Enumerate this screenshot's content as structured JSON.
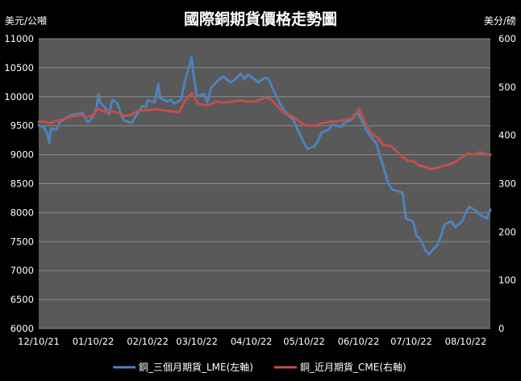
{
  "chart_data": {
    "type": "line",
    "title": "國際銅期貨價格走勢圖",
    "left_axis_label": "美元/公噸",
    "right_axis_label": "美分/磅",
    "y_left": {
      "min": 6000,
      "max": 11000,
      "ticks": [
        6000,
        6500,
        7000,
        7500,
        8000,
        8500,
        9000,
        9500,
        10000,
        10500,
        11000
      ]
    },
    "y_right": {
      "min": 0,
      "max": 600,
      "ticks": [
        0,
        100,
        200,
        300,
        400,
        500,
        600
      ]
    },
    "x_ticks": [
      "12/10/21",
      "01/10/22",
      "02/10/22",
      "03/10/22",
      "04/10/22",
      "05/10/22",
      "06/10/22",
      "07/10/22",
      "08/10/22"
    ],
    "x_range": [
      "2021-12-10",
      "2022-08-24"
    ],
    "grid": true,
    "legend_position": "bottom",
    "colors": {
      "lme": "#4f81bd",
      "cme": "#c0504d",
      "plot_bg": "#595959",
      "grid": "#8c8c8c"
    },
    "series": [
      {
        "name": "銅_三個月期貨_LME(左軸)",
        "axis": "left",
        "points": [
          [
            "2021-12-10",
            9510
          ],
          [
            "2021-12-13",
            9470
          ],
          [
            "2021-12-15",
            9360
          ],
          [
            "2021-12-16",
            9200
          ],
          [
            "2021-12-17",
            9450
          ],
          [
            "2021-12-20",
            9430
          ],
          [
            "2021-12-22",
            9560
          ],
          [
            "2021-12-24",
            9600
          ],
          [
            "2021-12-28",
            9680
          ],
          [
            "2021-12-31",
            9700
          ],
          [
            "2022-01-04",
            9720
          ],
          [
            "2022-01-06",
            9600
          ],
          [
            "2022-01-07",
            9560
          ],
          [
            "2022-01-10",
            9650
          ],
          [
            "2022-01-12",
            9820
          ],
          [
            "2022-01-13",
            10050
          ],
          [
            "2022-01-14",
            9900
          ],
          [
            "2022-01-17",
            9800
          ],
          [
            "2022-01-19",
            9700
          ],
          [
            "2022-01-21",
            9950
          ],
          [
            "2022-01-24",
            9870
          ],
          [
            "2022-01-26",
            9680
          ],
          [
            "2022-01-28",
            9580
          ],
          [
            "2022-02-01",
            9550
          ],
          [
            "2022-02-03",
            9650
          ],
          [
            "2022-02-07",
            9840
          ],
          [
            "2022-02-09",
            9820
          ],
          [
            "2022-02-10",
            9940
          ],
          [
            "2022-02-14",
            9900
          ],
          [
            "2022-02-16",
            10220
          ],
          [
            "2022-02-17",
            9980
          ],
          [
            "2022-02-21",
            9920
          ],
          [
            "2022-02-23",
            9950
          ],
          [
            "2022-02-25",
            9880
          ],
          [
            "2022-03-01",
            9950
          ],
          [
            "2022-03-03",
            10250
          ],
          [
            "2022-03-07",
            10680
          ],
          [
            "2022-03-08",
            10400
          ],
          [
            "2022-03-10",
            10000
          ],
          [
            "2022-03-14",
            10050
          ],
          [
            "2022-03-16",
            9900
          ],
          [
            "2022-03-18",
            10150
          ],
          [
            "2022-03-22",
            10280
          ],
          [
            "2022-03-25",
            10350
          ],
          [
            "2022-03-29",
            10250
          ],
          [
            "2022-04-01",
            10300
          ],
          [
            "2022-04-04",
            10400
          ],
          [
            "2022-04-06",
            10300
          ],
          [
            "2022-04-08",
            10380
          ],
          [
            "2022-04-12",
            10300
          ],
          [
            "2022-04-14",
            10250
          ],
          [
            "2022-04-18",
            10330
          ],
          [
            "2022-04-20",
            10300
          ],
          [
            "2022-04-22",
            10150
          ],
          [
            "2022-04-26",
            9900
          ],
          [
            "2022-04-28",
            9800
          ],
          [
            "2022-05-02",
            9650
          ],
          [
            "2022-05-04",
            9600
          ],
          [
            "2022-05-06",
            9450
          ],
          [
            "2022-05-10",
            9200
          ],
          [
            "2022-05-12",
            9100
          ],
          [
            "2022-05-16",
            9150
          ],
          [
            "2022-05-18",
            9250
          ],
          [
            "2022-05-20",
            9380
          ],
          [
            "2022-05-24",
            9430
          ],
          [
            "2022-05-26",
            9520
          ],
          [
            "2022-05-31",
            9480
          ],
          [
            "2022-06-02",
            9550
          ],
          [
            "2022-06-06",
            9600
          ],
          [
            "2022-06-08",
            9700
          ],
          [
            "2022-06-10",
            9700
          ],
          [
            "2022-06-14",
            9450
          ],
          [
            "2022-06-16",
            9350
          ],
          [
            "2022-06-20",
            9200
          ],
          [
            "2022-06-22",
            9000
          ],
          [
            "2022-06-24",
            8800
          ],
          [
            "2022-06-27",
            8500
          ],
          [
            "2022-06-29",
            8400
          ],
          [
            "2022-07-01",
            8380
          ],
          [
            "2022-07-05",
            8350
          ],
          [
            "2022-07-07",
            7900
          ],
          [
            "2022-07-11",
            7850
          ],
          [
            "2022-07-13",
            7600
          ],
          [
            "2022-07-15",
            7550
          ],
          [
            "2022-07-18",
            7350
          ],
          [
            "2022-07-20",
            7280
          ],
          [
            "2022-07-22",
            7350
          ],
          [
            "2022-07-25",
            7450
          ],
          [
            "2022-07-27",
            7600
          ],
          [
            "2022-07-29",
            7800
          ],
          [
            "2022-08-02",
            7850
          ],
          [
            "2022-08-04",
            7750
          ],
          [
            "2022-08-08",
            7850
          ],
          [
            "2022-08-10",
            8000
          ],
          [
            "2022-08-12",
            8100
          ],
          [
            "2022-08-15",
            8050
          ],
          [
            "2022-08-17",
            8000
          ],
          [
            "2022-08-19",
            7950
          ],
          [
            "2022-08-22",
            7900
          ],
          [
            "2022-08-24",
            8050
          ]
        ]
      },
      {
        "name": "銅_近月期貨_CME(右軸)",
        "axis": "right",
        "points": [
          [
            "2021-12-10",
            428
          ],
          [
            "2021-12-13",
            428
          ],
          [
            "2021-12-16",
            425
          ],
          [
            "2021-12-20",
            430
          ],
          [
            "2021-12-23",
            432
          ],
          [
            "2021-12-28",
            438
          ],
          [
            "2022-01-03",
            443
          ],
          [
            "2022-01-06",
            437
          ],
          [
            "2022-01-10",
            442
          ],
          [
            "2022-01-13",
            455
          ],
          [
            "2022-01-17",
            448
          ],
          [
            "2022-01-21",
            450
          ],
          [
            "2022-01-25",
            445
          ],
          [
            "2022-01-28",
            440
          ],
          [
            "2022-02-01",
            443
          ],
          [
            "2022-02-04",
            450
          ],
          [
            "2022-02-08",
            452
          ],
          [
            "2022-02-11",
            452
          ],
          [
            "2022-02-15",
            455
          ],
          [
            "2022-02-18",
            452
          ],
          [
            "2022-02-23",
            450
          ],
          [
            "2022-02-28",
            448
          ],
          [
            "2022-03-03",
            470
          ],
          [
            "2022-03-07",
            488
          ],
          [
            "2022-03-09",
            475
          ],
          [
            "2022-03-11",
            465
          ],
          [
            "2022-03-16",
            462
          ],
          [
            "2022-03-21",
            470
          ],
          [
            "2022-03-25",
            468
          ],
          [
            "2022-03-30",
            470
          ],
          [
            "2022-04-04",
            472
          ],
          [
            "2022-04-08",
            470
          ],
          [
            "2022-04-12",
            470
          ],
          [
            "2022-04-18",
            478
          ],
          [
            "2022-04-21",
            475
          ],
          [
            "2022-04-25",
            460
          ],
          [
            "2022-04-29",
            445
          ],
          [
            "2022-05-03",
            440
          ],
          [
            "2022-05-06",
            432
          ],
          [
            "2022-05-10",
            422
          ],
          [
            "2022-05-13",
            420
          ],
          [
            "2022-05-17",
            420
          ],
          [
            "2022-05-20",
            425
          ],
          [
            "2022-05-25",
            428
          ],
          [
            "2022-05-31",
            430
          ],
          [
            "2022-06-03",
            433
          ],
          [
            "2022-06-07",
            435
          ],
          [
            "2022-06-10",
            455
          ],
          [
            "2022-06-14",
            425
          ],
          [
            "2022-06-17",
            405
          ],
          [
            "2022-06-21",
            395
          ],
          [
            "2022-06-24",
            380
          ],
          [
            "2022-06-28",
            378
          ],
          [
            "2022-07-01",
            370
          ],
          [
            "2022-07-05",
            355
          ],
          [
            "2022-07-08",
            348
          ],
          [
            "2022-07-12",
            345
          ],
          [
            "2022-07-14",
            338
          ],
          [
            "2022-07-18",
            335
          ],
          [
            "2022-07-21",
            330
          ],
          [
            "2022-07-25",
            333
          ],
          [
            "2022-07-28",
            337
          ],
          [
            "2022-08-01",
            340
          ],
          [
            "2022-08-04",
            345
          ],
          [
            "2022-08-08",
            355
          ],
          [
            "2022-08-11",
            362
          ],
          [
            "2022-08-15",
            360
          ],
          [
            "2022-08-18",
            365
          ],
          [
            "2022-08-22",
            360
          ],
          [
            "2022-08-24",
            360
          ]
        ]
      }
    ]
  }
}
